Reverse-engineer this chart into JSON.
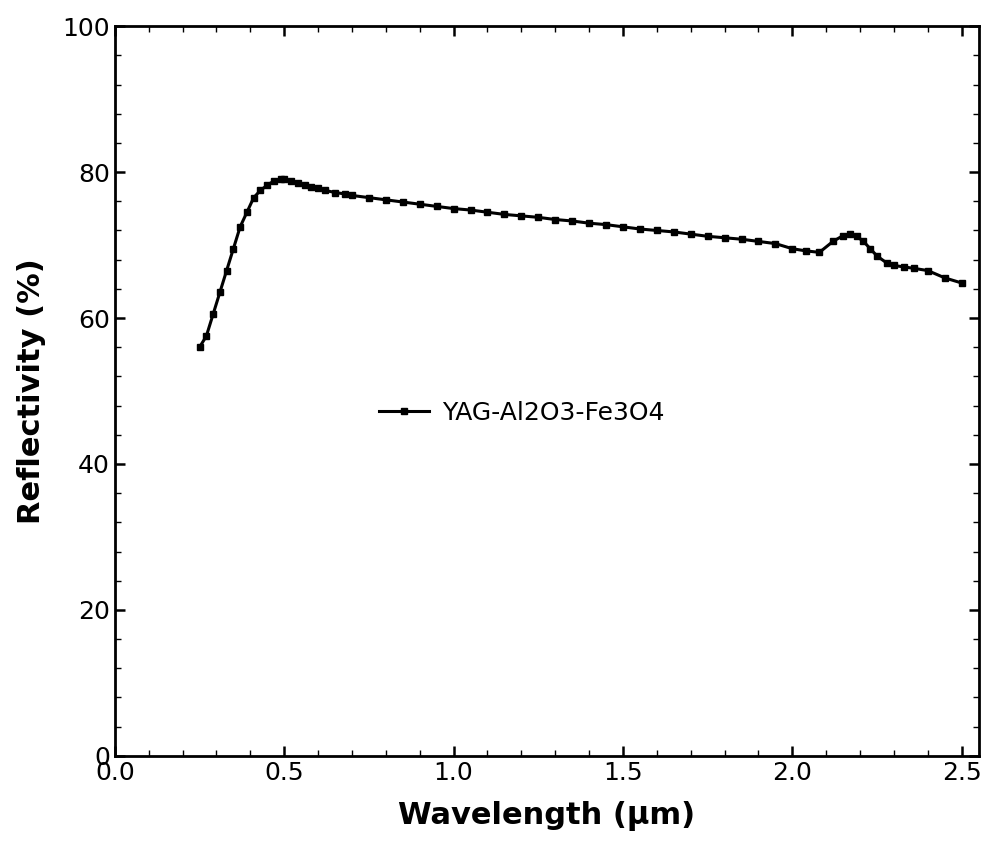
{
  "title": "",
  "xlabel": "Wavelength (μm)",
  "ylabel": "Reflectivity (%)",
  "xlim": [
    0.0,
    2.55
  ],
  "ylim": [
    0,
    100
  ],
  "xticks": [
    0.0,
    0.5,
    1.0,
    1.5,
    2.0,
    2.5
  ],
  "yticks": [
    0,
    20,
    40,
    60,
    80,
    100
  ],
  "legend_label": "YAG-Al2O3-Fe3O4",
  "line_color": "#000000",
  "marker": "s",
  "markersize": 5,
  "linewidth": 2.2,
  "x": [
    0.25,
    0.27,
    0.29,
    0.31,
    0.33,
    0.35,
    0.37,
    0.39,
    0.41,
    0.43,
    0.45,
    0.47,
    0.49,
    0.5,
    0.52,
    0.54,
    0.56,
    0.58,
    0.6,
    0.62,
    0.65,
    0.68,
    0.7,
    0.75,
    0.8,
    0.85,
    0.9,
    0.95,
    1.0,
    1.05,
    1.1,
    1.15,
    1.2,
    1.25,
    1.3,
    1.35,
    1.4,
    1.45,
    1.5,
    1.55,
    1.6,
    1.65,
    1.7,
    1.75,
    1.8,
    1.85,
    1.9,
    1.95,
    2.0,
    2.04,
    2.08,
    2.12,
    2.15,
    2.17,
    2.19,
    2.21,
    2.23,
    2.25,
    2.28,
    2.3,
    2.33,
    2.36,
    2.4,
    2.45,
    2.5
  ],
  "y": [
    56.0,
    57.5,
    60.5,
    63.5,
    66.5,
    69.5,
    72.5,
    74.5,
    76.5,
    77.5,
    78.2,
    78.8,
    79.0,
    79.0,
    78.8,
    78.5,
    78.2,
    78.0,
    77.8,
    77.5,
    77.2,
    77.0,
    76.8,
    76.5,
    76.2,
    75.9,
    75.6,
    75.3,
    75.0,
    74.8,
    74.5,
    74.2,
    74.0,
    73.8,
    73.5,
    73.3,
    73.0,
    72.8,
    72.5,
    72.2,
    72.0,
    71.8,
    71.5,
    71.2,
    71.0,
    70.8,
    70.5,
    70.2,
    69.5,
    69.2,
    69.0,
    70.5,
    71.3,
    71.5,
    71.2,
    70.5,
    69.5,
    68.5,
    67.5,
    67.2,
    67.0,
    66.8,
    66.5,
    65.5,
    64.8
  ]
}
